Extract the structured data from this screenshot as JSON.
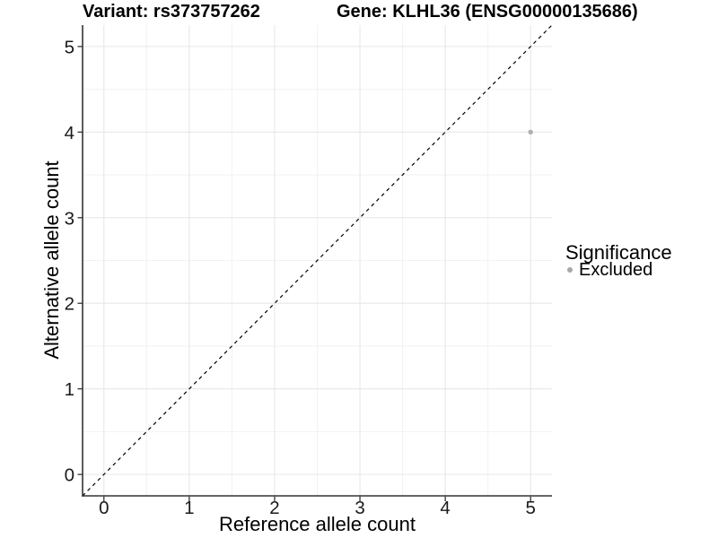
{
  "titles": {
    "variant": "Variant: rs373757262",
    "gene": "Gene: KLHL36 (ENSG00000135686)"
  },
  "chart_data": {
    "type": "scatter",
    "title": "Variant: rs373757262    Gene: KLHL36 (ENSG00000135686)",
    "xlabel": "Reference allele count",
    "ylabel": "Alternative allele count",
    "xlim": [
      -0.25,
      5.25
    ],
    "ylim": [
      -0.25,
      5.25
    ],
    "x_ticks": [
      0,
      1,
      2,
      3,
      4,
      5
    ],
    "y_ticks": [
      0,
      1,
      2,
      3,
      4,
      5
    ],
    "x_minor_ticks": [
      0.5,
      1.5,
      2.5,
      3.5,
      4.5
    ],
    "y_minor_ticks": [
      0.5,
      1.5,
      2.5,
      3.5,
      4.5
    ],
    "grid": "major+minor",
    "series": [
      {
        "name": "Excluded",
        "marker": "circle",
        "color": "#b0b0b0",
        "points": [
          {
            "x": 5,
            "y": 4
          }
        ]
      }
    ],
    "reference_line": {
      "kind": "abline",
      "slope": 1,
      "intercept": 0,
      "linestyle": "dashed",
      "color": "#000000"
    },
    "legend": {
      "title": "Significance",
      "position": "right",
      "items": [
        {
          "label": "Excluded",
          "color": "#a8a8a8",
          "marker": "circle"
        }
      ]
    }
  },
  "style": {
    "grid_major_color": "#e7e7e7",
    "grid_minor_color": "#f2f2f2",
    "axis_line_color": "#333333",
    "tick_color": "#333333",
    "tick_label_color": "#1a1a1a",
    "point_radius": 2.7
  }
}
